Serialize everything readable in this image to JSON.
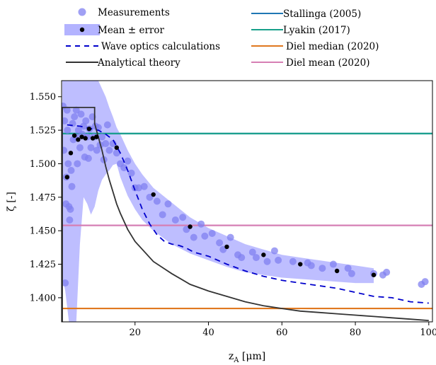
{
  "chart_data": {
    "type": "scatter",
    "xlabel": "z",
    "xlabel_sub": "A",
    "xlabel_unit": " [μm]",
    "ylabel": "ζ [-]",
    "xlim": [
      0,
      101
    ],
    "ylim": [
      1.382,
      1.562
    ],
    "x_ticks": [
      20,
      40,
      60,
      80,
      100
    ],
    "x_tick_labels": [
      "20",
      "40",
      "60",
      "80",
      "100"
    ],
    "y_ticks": [
      1.4,
      1.425,
      1.45,
      1.475,
      1.5,
      1.525,
      1.55
    ],
    "y_tick_labels": [
      "1.400",
      "1.425",
      "1.450",
      "1.475",
      "1.500",
      "1.525",
      "1.550"
    ],
    "legend_left": [
      "Measurements",
      "Mean ± error",
      "Wave optics calculations",
      "Analytical theory"
    ],
    "legend_right": [
      "Stallinga (2005)",
      "Lyakin (2017)",
      "Diel median (2020)",
      "Diel mean (2020)"
    ],
    "legend_placement": "top, outside plot",
    "series": [
      {
        "name": "Measurements",
        "kind": "scatter",
        "color": "#8080f0",
        "points": [
          [
            0.4,
            1.543
          ],
          [
            0.8,
            1.532
          ],
          [
            1.0,
            1.411
          ],
          [
            0.6,
            1.51
          ],
          [
            1.2,
            1.47
          ],
          [
            1.5,
            1.54
          ],
          [
            1.6,
            1.525
          ],
          [
            1.8,
            1.5
          ],
          [
            2.0,
            1.468
          ],
          [
            2.2,
            1.458
          ],
          [
            2.4,
            1.466
          ],
          [
            2.6,
            1.495
          ],
          [
            2.8,
            1.483
          ],
          [
            1.3,
            1.49
          ],
          [
            3.0,
            1.53
          ],
          [
            3.2,
            1.518
          ],
          [
            3.5,
            1.535
          ],
          [
            3.8,
            1.52
          ],
          [
            4.0,
            1.54
          ],
          [
            4.3,
            1.5
          ],
          [
            4.6,
            1.525
          ],
          [
            5.0,
            1.512
          ],
          [
            5.3,
            1.537
          ],
          [
            5.6,
            1.522
          ],
          [
            6.0,
            1.528
          ],
          [
            6.3,
            1.505
          ],
          [
            6.6,
            1.532
          ],
          [
            7.0,
            1.52
          ],
          [
            7.3,
            1.504
          ],
          [
            7.6,
            1.526
          ],
          [
            8.0,
            1.512
          ],
          [
            8.4,
            1.535
          ],
          [
            8.8,
            1.52
          ],
          [
            9.2,
            1.528
          ],
          [
            9.6,
            1.51
          ],
          [
            10.0,
            1.527
          ],
          [
            10.5,
            1.514
          ],
          [
            11.0,
            1.52
          ],
          [
            11.5,
            1.503
          ],
          [
            12.0,
            1.515
          ],
          [
            12.5,
            1.529
          ],
          [
            13.0,
            1.51
          ],
          [
            14.0,
            1.515
          ],
          [
            15.0,
            1.508
          ],
          [
            16.0,
            1.5
          ],
          [
            17.0,
            1.497
          ],
          [
            18.0,
            1.502
          ],
          [
            19.0,
            1.493
          ],
          [
            20.0,
            1.482
          ],
          [
            21.0,
            1.482
          ],
          [
            22.5,
            1.483
          ],
          [
            24.0,
            1.475
          ],
          [
            26.0,
            1.472
          ],
          [
            27.5,
            1.462
          ],
          [
            29.0,
            1.47
          ],
          [
            31.0,
            1.458
          ],
          [
            33.0,
            1.46
          ],
          [
            34.0,
            1.451
          ],
          [
            36.0,
            1.445
          ],
          [
            38.0,
            1.455
          ],
          [
            39.0,
            1.446
          ],
          [
            41.0,
            1.448
          ],
          [
            43.0,
            1.441
          ],
          [
            44.0,
            1.436
          ],
          [
            46.0,
            1.445
          ],
          [
            48.0,
            1.432
          ],
          [
            49.0,
            1.43
          ],
          [
            52.0,
            1.434
          ],
          [
            53.0,
            1.43
          ],
          [
            56.0,
            1.427
          ],
          [
            58.0,
            1.435
          ],
          [
            59.0,
            1.428
          ],
          [
            63.0,
            1.427
          ],
          [
            67.0,
            1.426
          ],
          [
            68.0,
            1.424
          ],
          [
            71.0,
            1.422
          ],
          [
            74.0,
            1.425
          ],
          [
            78.0,
            1.422
          ],
          [
            79.0,
            1.418
          ],
          [
            85.0,
            1.418
          ],
          [
            87.5,
            1.417
          ],
          [
            88.5,
            1.419
          ],
          [
            98.0,
            1.41
          ],
          [
            99.0,
            1.412
          ]
        ]
      },
      {
        "name": "Mean ± error",
        "kind": "band",
        "color": "#b3b3ff",
        "x": [
          0.2,
          1,
          2,
          3,
          4,
          5,
          6,
          7,
          8,
          9,
          10,
          11,
          12,
          13,
          14,
          15,
          16,
          17,
          18,
          20,
          22,
          25,
          30,
          35,
          40,
          45,
          50,
          55,
          60,
          65,
          70,
          75,
          80,
          85
        ],
        "upper": [
          1.562,
          1.562,
          1.562,
          1.562,
          1.562,
          1.562,
          1.562,
          1.562,
          1.562,
          1.562,
          1.562,
          1.556,
          1.55,
          1.542,
          1.535,
          1.527,
          1.522,
          1.516,
          1.51,
          1.5,
          1.492,
          1.482,
          1.471,
          1.46,
          1.452,
          1.446,
          1.44,
          1.436,
          1.432,
          1.43,
          1.428,
          1.426,
          1.424,
          1.422
        ],
        "lower": [
          1.415,
          1.405,
          1.382,
          1.382,
          1.382,
          1.44,
          1.475,
          1.47,
          1.462,
          1.468,
          1.48,
          1.488,
          1.492,
          1.495,
          1.499,
          1.5,
          1.49,
          1.483,
          1.476,
          1.466,
          1.458,
          1.45,
          1.44,
          1.433,
          1.428,
          1.423,
          1.419,
          1.417,
          1.415,
          1.414,
          1.413,
          1.412,
          1.411,
          1.411
        ]
      },
      {
        "name": "Mean ± error",
        "kind": "mean-points",
        "color": "#000000",
        "points": [
          [
            1.5,
            1.49
          ],
          [
            2.5,
            1.508
          ],
          [
            3.5,
            1.521
          ],
          [
            4.5,
            1.518
          ],
          [
            5.5,
            1.52
          ],
          [
            6.5,
            1.519
          ],
          [
            7.5,
            1.526
          ],
          [
            8.5,
            1.519
          ],
          [
            9.5,
            1.52
          ],
          [
            15,
            1.512
          ],
          [
            25,
            1.477
          ],
          [
            35,
            1.453
          ],
          [
            45,
            1.438
          ],
          [
            55,
            1.432
          ],
          [
            65,
            1.425
          ],
          [
            75,
            1.42
          ],
          [
            85,
            1.417
          ]
        ]
      },
      {
        "name": "Wave optics calculations",
        "kind": "dashed-line",
        "color": "#0000cc",
        "points": [
          [
            1.5,
            1.529
          ],
          [
            5,
            1.528
          ],
          [
            10,
            1.525
          ],
          [
            12,
            1.522
          ],
          [
            14,
            1.518
          ],
          [
            16,
            1.508
          ],
          [
            18,
            1.495
          ],
          [
            20,
            1.48
          ],
          [
            22,
            1.466
          ],
          [
            24,
            1.455
          ],
          [
            26,
            1.447
          ],
          [
            28,
            1.442
          ],
          [
            30,
            1.44
          ],
          [
            32,
            1.439
          ],
          [
            34,
            1.437
          ],
          [
            36,
            1.434
          ],
          [
            40,
            1.431
          ],
          [
            45,
            1.425
          ],
          [
            50,
            1.42
          ],
          [
            55,
            1.416
          ],
          [
            60,
            1.413
          ],
          [
            65,
            1.411
          ],
          [
            70,
            1.409
          ],
          [
            75,
            1.407
          ],
          [
            80,
            1.404
          ],
          [
            85,
            1.401
          ],
          [
            90,
            1.4
          ],
          [
            95,
            1.397
          ],
          [
            100,
            1.396
          ]
        ]
      },
      {
        "name": "Analytical theory",
        "kind": "line",
        "color": "#333333",
        "points": [
          [
            0.2,
            1.382
          ],
          [
            0.2,
            1.542
          ],
          [
            9,
            1.542
          ],
          [
            9,
            1.53
          ],
          [
            10,
            1.52
          ],
          [
            11,
            1.51
          ],
          [
            12,
            1.498
          ],
          [
            13,
            1.488
          ],
          [
            14,
            1.479
          ],
          [
            15,
            1.47
          ],
          [
            16,
            1.463
          ],
          [
            18,
            1.451
          ],
          [
            20,
            1.442
          ],
          [
            25,
            1.427
          ],
          [
            30,
            1.418
          ],
          [
            35,
            1.41
          ],
          [
            40,
            1.405
          ],
          [
            45,
            1.401
          ],
          [
            50,
            1.397
          ],
          [
            55,
            1.394
          ],
          [
            60,
            1.392
          ],
          [
            65,
            1.39
          ],
          [
            70,
            1.389
          ],
          [
            75,
            1.388
          ],
          [
            80,
            1.387
          ],
          [
            85,
            1.386
          ],
          [
            90,
            1.385
          ],
          [
            95,
            1.384
          ],
          [
            100,
            1.383
          ]
        ]
      },
      {
        "name": "Stallinga (2005)",
        "kind": "hline",
        "color": "#1f77b4",
        "y": 1.5225
      },
      {
        "name": "Lyakin (2017)",
        "kind": "hline",
        "color": "#17a08a",
        "y": 1.5225
      },
      {
        "name": "Diel median (2020)",
        "kind": "hline",
        "color": "#e0781f",
        "y": 1.392
      },
      {
        "name": "Diel mean (2020)",
        "kind": "hline",
        "color": "#d67fb4",
        "y": 1.454
      }
    ]
  }
}
